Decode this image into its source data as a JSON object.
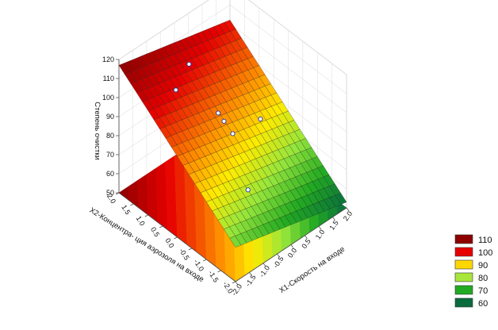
{
  "chart_data": {
    "type": "surface3d",
    "title": "",
    "z_axis": {
      "label": "Степень очистки",
      "range": [
        50,
        120
      ],
      "ticks": [
        50,
        60,
        70,
        80,
        90,
        100,
        110,
        120
      ]
    },
    "x1_axis": {
      "label": "X1-Скорость на входе",
      "range": [
        -2.0,
        2.0
      ],
      "ticks": [
        "-2.0",
        "-1.5",
        "-1.0",
        "-0.5",
        "0.0",
        "0.5",
        "1.0",
        "1.5",
        "2.0"
      ]
    },
    "x2_axis": {
      "label": "X2-Концентра- ция аэрозоля на входе",
      "range": [
        -2.0,
        2.0
      ],
      "ticks": [
        "2.0",
        "1.5",
        "1.0",
        "0.5",
        "0.0",
        "-0.5",
        "-1.0",
        "-1.5",
        "-2.0"
      ]
    },
    "surface": {
      "corners": [
        {
          "x1": -2.0,
          "x2": 2.0,
          "z": 117
        },
        {
          "x1": 2.0,
          "x2": 2.0,
          "z": 102
        },
        {
          "x1": -2.0,
          "x2": -2.0,
          "z": 68
        },
        {
          "x1": 2.0,
          "x2": -2.0,
          "z": 53
        }
      ],
      "wireframe": true
    },
    "observed_points": [
      {
        "x1": -1.0,
        "x2": 1.0,
        "z": 106
      },
      {
        "x1": 0.0,
        "x2": 1.5,
        "z": 104
      },
      {
        "x1": 0.0,
        "x2": 0.5,
        "z": 90
      },
      {
        "x1": 0.0,
        "x2": 0.3,
        "z": 88
      },
      {
        "x1": 0.0,
        "x2": 0.0,
        "z": 85
      },
      {
        "x1": 1.0,
        "x2": 0.0,
        "z": 83
      },
      {
        "x1": -0.5,
        "x2": -1.0,
        "z": 72
      }
    ],
    "legend": {
      "placement": "right",
      "entries": [
        {
          "label": "110",
          "color": "#8c0000"
        },
        {
          "label": "100",
          "color": "#e60000"
        },
        {
          "label": "90",
          "color": "#ffd700"
        },
        {
          "label": "80",
          "color": "#a8e63c"
        },
        {
          "label": "70",
          "color": "#22aa22"
        },
        {
          "label": "60",
          "color": "#0a6b3e"
        }
      ]
    },
    "grid": true
  }
}
